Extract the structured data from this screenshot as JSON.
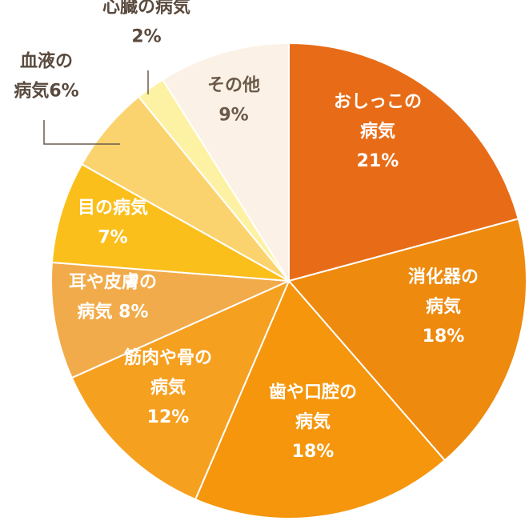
{
  "chart_data": {
    "type": "pie",
    "title": "",
    "slices": [
      {
        "label_lines": [
          "おしっこの",
          "病気"
        ],
        "value_text": "21%",
        "value": 21,
        "color": "#e86c17"
      },
      {
        "label_lines": [
          "消化器の",
          "病気"
        ],
        "value_text": "18%",
        "value": 18,
        "color": "#ee8a0e"
      },
      {
        "label_lines": [
          "歯や口腔の",
          "病気"
        ],
        "value_text": "18%",
        "value": 18,
        "color": "#f5960c"
      },
      {
        "label_lines": [
          "筋肉や骨の",
          "病気"
        ],
        "value_text": "12%",
        "value": 12,
        "color": "#f6a020"
      },
      {
        "label_lines": [
          "耳や皮膚の"
        ],
        "label_suffix": "病気",
        "value_text": "8%",
        "value": 8,
        "color": "#f2ab4a"
      },
      {
        "label_lines": [
          "目の病気"
        ],
        "value_text": "7%",
        "value": 7,
        "color": "#fbbf1b"
      },
      {
        "label_lines": [
          "血液の"
        ],
        "label_suffix": "病気",
        "value_text": "6%",
        "value": 6,
        "color": "#fbd36e"
      },
      {
        "label_lines": [
          "心臓の病気"
        ],
        "value_text": "2%",
        "value": 2,
        "color": "#fdf2a4"
      },
      {
        "label_lines": [
          "その他"
        ],
        "value_text": "9%",
        "value": 9,
        "color": "#fbf1e6"
      }
    ]
  }
}
